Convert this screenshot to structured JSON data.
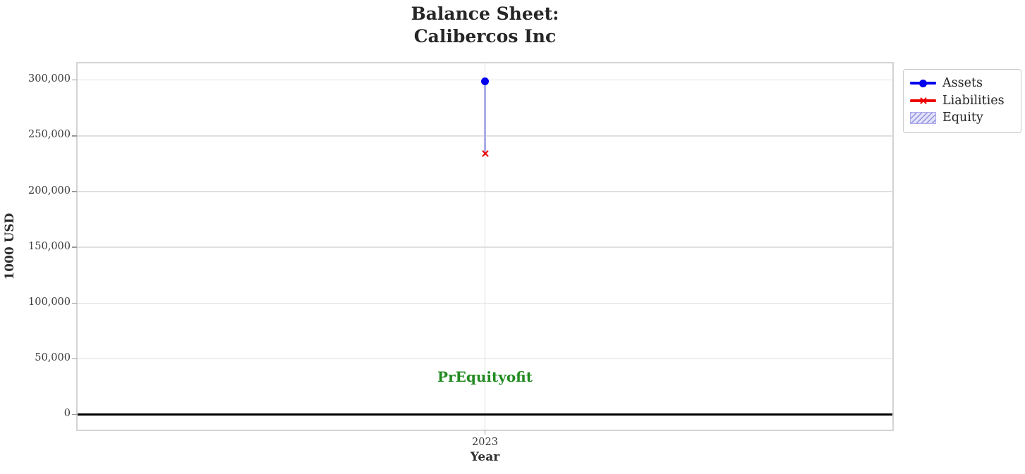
{
  "header": {
    "line1": "Balance Sheet:",
    "line2": "Calibercos Inc"
  },
  "annotation": {
    "text": "PrEquityofit",
    "color": "#228B22",
    "x": "2023",
    "y": 34000
  },
  "legend": {
    "position": "outside-right",
    "items": [
      {
        "label": "Assets",
        "swatch": "blue-line-circle-marker"
      },
      {
        "label": "Liabilities",
        "swatch": "red-line-x-marker"
      },
      {
        "label": "Equity",
        "swatch": "lavender-hatched-patch"
      }
    ]
  },
  "chart_data": {
    "type": "mixed",
    "title": "Balance Sheet:\nCalibercos Inc",
    "xlabel": "Year",
    "ylabel": "1000 USD",
    "categories": [
      "2023"
    ],
    "xtick_labels": [
      "2023"
    ],
    "series": [
      {
        "name": "Assets",
        "type": "line",
        "marker": "circle",
        "color": "#0000ee",
        "values": [
          299000
        ]
      },
      {
        "name": "Liabilities",
        "type": "line",
        "marker": "x",
        "color": "#ee0000",
        "values": [
          234000
        ]
      },
      {
        "name": "Equity",
        "type": "bar",
        "facecolor": "#e2e2fa",
        "edgecolor": "#9a9ade",
        "hatch": "//",
        "values": [
          65000
        ],
        "bottom": [
          234000
        ]
      }
    ],
    "yticks": {
      "values": [
        0,
        50000,
        100000,
        150000,
        200000,
        250000,
        300000
      ],
      "labels": [
        "0",
        "50,000",
        "100,000",
        "150,000",
        "200,000",
        "250,000",
        "300,000"
      ]
    },
    "ylim": [
      -13500,
      315000
    ],
    "grid": true,
    "zero_line": true,
    "legend_position": "outside-right"
  }
}
